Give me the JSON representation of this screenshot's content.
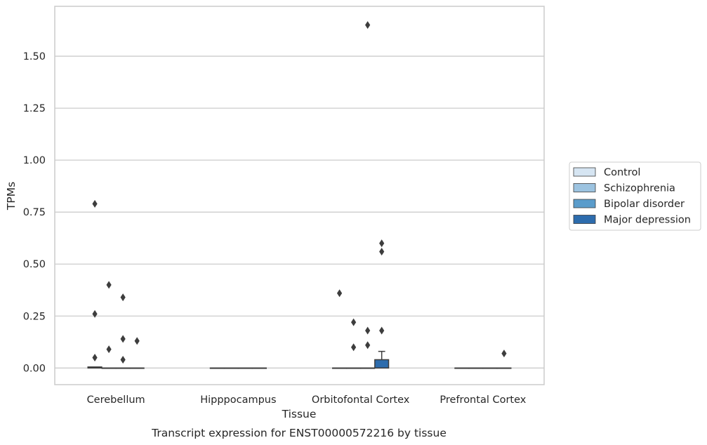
{
  "chart_data": {
    "type": "box",
    "xlabel": "Tissue",
    "ylabel": "TPMs",
    "caption": "Transcript expression for ENST00000572216 by tissue",
    "categories": [
      "Cerebellum",
      "Hipppocampus",
      "Orbitofontal Cortex",
      "Prefrontal Cortex"
    ],
    "yticks": [
      0.0,
      0.25,
      0.5,
      0.75,
      1.0,
      1.25,
      1.5
    ],
    "ytick_labels": [
      "0.00",
      "0.25",
      "0.50",
      "0.75",
      "1.00",
      "1.25",
      "1.50"
    ],
    "ylim": [
      -0.08,
      1.74
    ],
    "grid": true,
    "legend_position": "right",
    "series": [
      {
        "name": "Control",
        "color": "#d6e5f2",
        "boxes": [
          {
            "q1": 0.0,
            "median": 0.0,
            "q3": 0.005,
            "whislo": 0.0,
            "whishi": 0.005,
            "fliers": [
              0.79,
              0.26,
              0.05
            ]
          },
          {
            "q1": 0.0,
            "median": 0.0,
            "q3": 0.0,
            "whislo": 0.0,
            "whishi": 0.0,
            "fliers": []
          },
          {
            "q1": 0.0,
            "median": 0.0,
            "q3": 0.0,
            "whislo": 0.0,
            "whishi": 0.0,
            "fliers": [
              0.36
            ]
          },
          {
            "q1": 0.0,
            "median": 0.0,
            "q3": 0.0,
            "whislo": 0.0,
            "whishi": 0.0,
            "fliers": []
          }
        ]
      },
      {
        "name": "Schizophrenia",
        "color": "#9cc3e0",
        "boxes": [
          {
            "q1": 0.0,
            "median": 0.0,
            "q3": 0.0,
            "whislo": 0.0,
            "whishi": 0.0,
            "fliers": [
              0.4,
              0.09
            ]
          },
          {
            "q1": 0.0,
            "median": 0.0,
            "q3": 0.0,
            "whislo": 0.0,
            "whishi": 0.0,
            "fliers": []
          },
          {
            "q1": 0.0,
            "median": 0.0,
            "q3": 0.0,
            "whislo": 0.0,
            "whishi": 0.0,
            "fliers": [
              0.22,
              0.1
            ]
          },
          {
            "q1": 0.0,
            "median": 0.0,
            "q3": 0.0,
            "whislo": 0.0,
            "whishi": 0.0,
            "fliers": []
          }
        ]
      },
      {
        "name": "Bipolar disorder",
        "color": "#5a9ccb",
        "boxes": [
          {
            "q1": 0.0,
            "median": 0.0,
            "q3": 0.0,
            "whislo": 0.0,
            "whishi": 0.0,
            "fliers": [
              0.34,
              0.14,
              0.04
            ]
          },
          {
            "q1": 0.0,
            "median": 0.0,
            "q3": 0.0,
            "whislo": 0.0,
            "whishi": 0.0,
            "fliers": []
          },
          {
            "q1": 0.0,
            "median": 0.0,
            "q3": 0.0,
            "whislo": 0.0,
            "whishi": 0.0,
            "fliers": [
              1.65,
              0.18,
              0.11
            ]
          },
          {
            "q1": 0.0,
            "median": 0.0,
            "q3": 0.0,
            "whislo": 0.0,
            "whishi": 0.0,
            "fliers": []
          }
        ]
      },
      {
        "name": "Major depression",
        "color": "#2d6cad",
        "boxes": [
          {
            "q1": 0.0,
            "median": 0.0,
            "q3": 0.0,
            "whislo": 0.0,
            "whishi": 0.0,
            "fliers": [
              0.13
            ]
          },
          {
            "q1": 0.0,
            "median": 0.0,
            "q3": 0.0,
            "whislo": 0.0,
            "whishi": 0.0,
            "fliers": []
          },
          {
            "q1": 0.0,
            "median": 0.0,
            "q3": 0.04,
            "whislo": 0.0,
            "whishi": 0.08,
            "fliers": [
              0.6,
              0.56,
              0.18
            ]
          },
          {
            "q1": 0.0,
            "median": 0.0,
            "q3": 0.0,
            "whislo": 0.0,
            "whishi": 0.0,
            "fliers": [
              0.07
            ]
          }
        ]
      }
    ]
  }
}
